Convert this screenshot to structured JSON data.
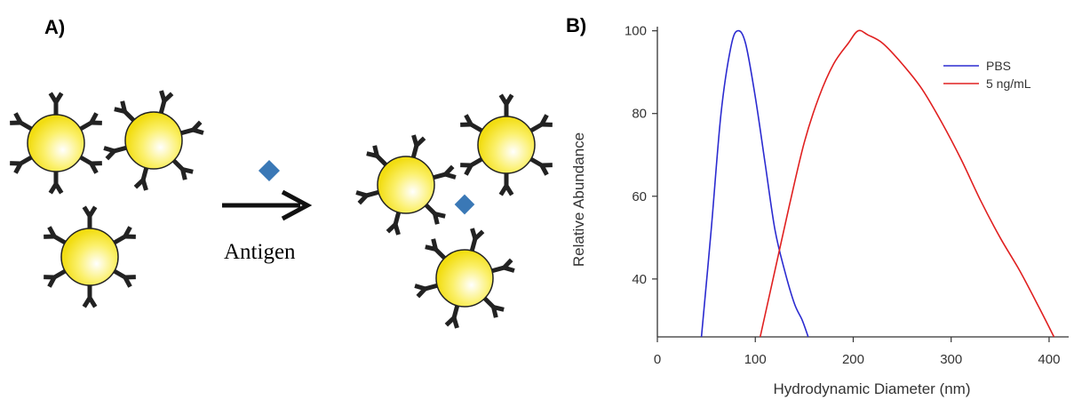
{
  "panel_a": {
    "label": "A)",
    "arrow_label": "Antigen",
    "colors": {
      "particle": "#f5e61e",
      "antibody": "#222222",
      "antigen": "#3a78b6"
    }
  },
  "panel_b": {
    "label": "B)"
  },
  "chart_data": {
    "type": "line",
    "xlabel": "Hydrodynamic Diameter (nm)",
    "ylabel": "Relative Abundance",
    "xlim": [
      0,
      420
    ],
    "ylim": [
      26,
      101
    ],
    "xticks": [
      0,
      100,
      200,
      300,
      400
    ],
    "yticks": [
      40,
      60,
      80,
      100
    ],
    "grid": false,
    "legend_position": "top-right",
    "series": [
      {
        "name": "PBS",
        "color": "#2b2bd0",
        "x": [
          45,
          55,
          65,
          75,
          82,
          90,
          100,
          110,
          120,
          130,
          140,
          148,
          154
        ],
        "y": [
          26,
          52,
          80,
          96,
          100,
          97,
          84,
          68,
          52,
          42,
          34,
          30,
          26
        ]
      },
      {
        "name": "5 ng/mL",
        "color": "#e02020",
        "x": [
          105,
          120,
          135,
          150,
          165,
          180,
          195,
          205,
          215,
          230,
          250,
          270,
          290,
          310,
          330,
          350,
          370,
          390,
          405
        ],
        "y": [
          26,
          42,
          58,
          73,
          84,
          92,
          97,
          100,
          99,
          97,
          92,
          86,
          78,
          69,
          59,
          50,
          42,
          33,
          26
        ]
      }
    ]
  }
}
